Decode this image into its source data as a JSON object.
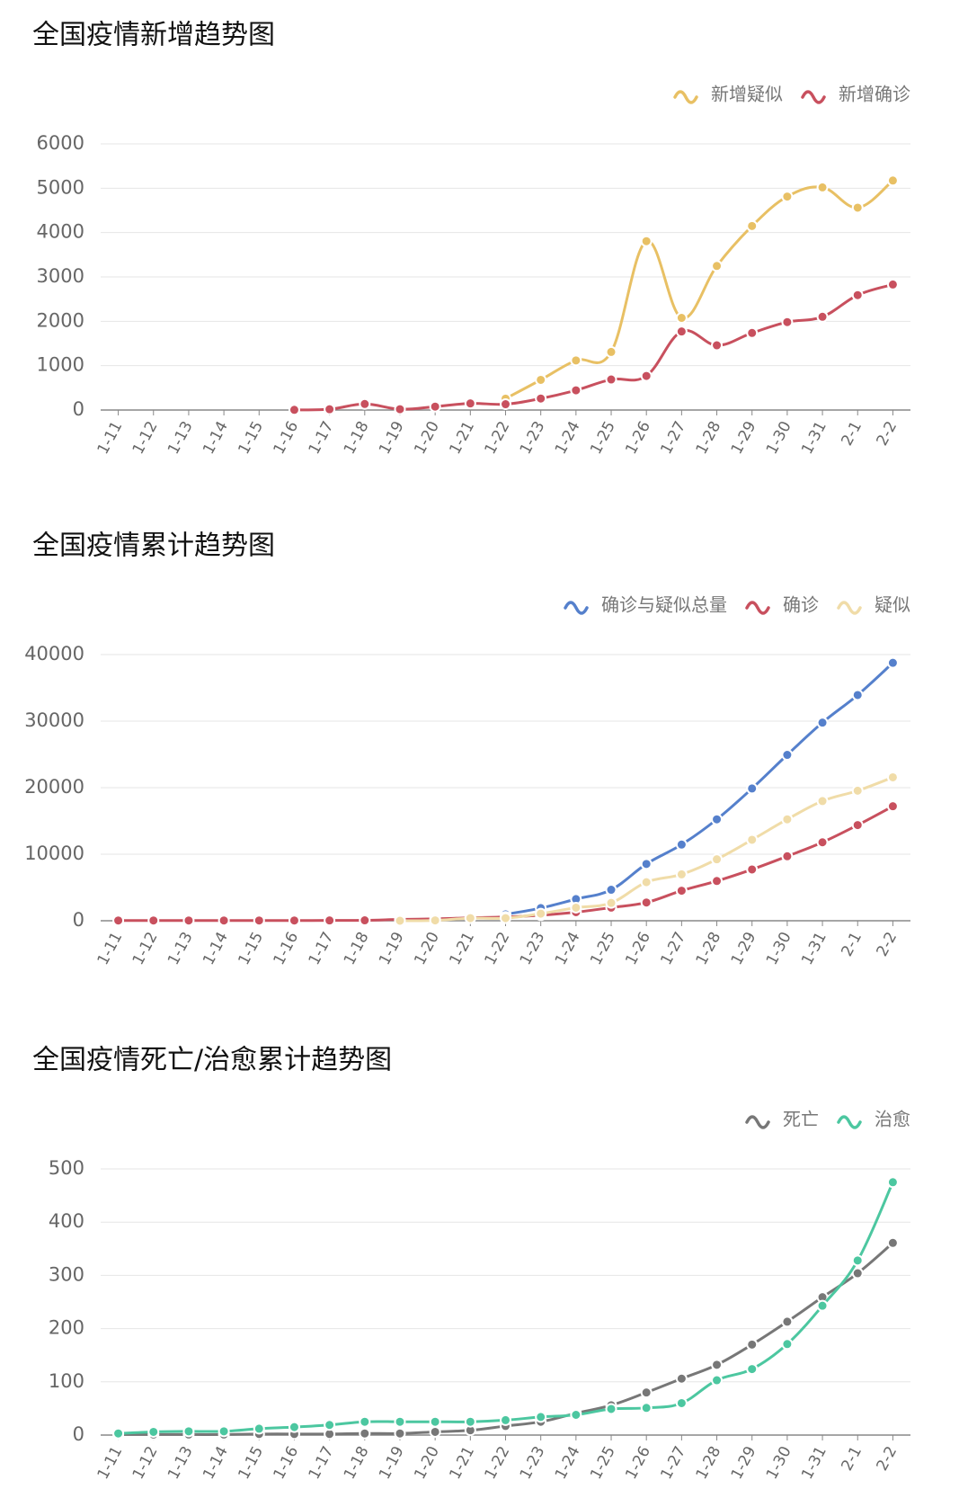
{
  "chart_data": [
    {
      "type": "line",
      "title": "全国疫情新增趋势图",
      "categories": [
        "1-11",
        "1-12",
        "1-13",
        "1-14",
        "1-15",
        "1-16",
        "1-17",
        "1-18",
        "1-19",
        "1-20",
        "1-21",
        "1-22",
        "1-23",
        "1-24",
        "1-25",
        "1-26",
        "1-27",
        "1-28",
        "1-29",
        "1-30",
        "1-31",
        "2-1",
        "2-2"
      ],
      "series": [
        {
          "name": "新增疑似",
          "color": "#e8c064",
          "values": [
            null,
            null,
            null,
            null,
            null,
            null,
            null,
            null,
            null,
            null,
            null,
            257,
            680,
            1118,
            1309,
            3806,
            2077,
            3248,
            4148,
            4812,
            5019,
            4562,
            5173
          ]
        },
        {
          "name": "新增确诊",
          "color": "#c8505e",
          "values": [
            null,
            null,
            null,
            null,
            null,
            4,
            17,
            136,
            19,
            77,
            149,
            131,
            259,
            444,
            688,
            769,
            1771,
            1459,
            1737,
            1982,
            2102,
            2590,
            2829
          ]
        }
      ],
      "ylim": [
        0,
        6000
      ],
      "yticks": [
        0,
        1000,
        2000,
        3000,
        4000,
        5000,
        6000
      ],
      "grid": true,
      "legend": "top-right"
    },
    {
      "type": "line",
      "title": "全国疫情累计趋势图",
      "categories": [
        "1-11",
        "1-12",
        "1-13",
        "1-14",
        "1-15",
        "1-16",
        "1-17",
        "1-18",
        "1-19",
        "1-20",
        "1-21",
        "1-22",
        "1-23",
        "1-24",
        "1-25",
        "1-26",
        "1-27",
        "1-28",
        "1-29",
        "1-30",
        "1-31",
        "2-1",
        "2-2"
      ],
      "series": [
        {
          "name": "确诊与疑似总量",
          "color": "#5580cc",
          "values": [
            null,
            null,
            null,
            null,
            null,
            null,
            null,
            null,
            null,
            null,
            null,
            964,
            1902,
            3252,
            4659,
            8538,
            11447,
            15238,
            19878,
            24930,
            29779,
            33924,
            38763
          ]
        },
        {
          "name": "确诊",
          "color": "#c8505e",
          "values": [
            41,
            41,
            41,
            41,
            41,
            41,
            45,
            62,
            198,
            291,
            440,
            571,
            830,
            1287,
            1975,
            2744,
            4515,
            5974,
            7711,
            9692,
            11791,
            14380,
            17205
          ]
        },
        {
          "name": "疑似",
          "color": "#f0dca8",
          "values": [
            null,
            null,
            null,
            null,
            null,
            null,
            null,
            null,
            0,
            54,
            393,
            393,
            1072,
            1965,
            2684,
            5794,
            6973,
            9239,
            12167,
            15238,
            17988,
            19544,
            21558
          ]
        }
      ],
      "ylim": [
        0,
        40000
      ],
      "yticks": [
        0,
        10000,
        20000,
        30000,
        40000
      ],
      "grid": true,
      "legend": "top-right"
    },
    {
      "type": "line",
      "title": "全国疫情死亡/治愈累计趋势图",
      "categories": [
        "1-11",
        "1-12",
        "1-13",
        "1-14",
        "1-15",
        "1-16",
        "1-17",
        "1-18",
        "1-19",
        "1-20",
        "1-21",
        "1-22",
        "1-23",
        "1-24",
        "1-25",
        "1-26",
        "1-27",
        "1-28",
        "1-29",
        "1-30",
        "1-31",
        "2-1",
        "2-2"
      ],
      "series": [
        {
          "name": "死亡",
          "color": "#777777",
          "values": [
            1,
            1,
            1,
            1,
            2,
            2,
            2,
            3,
            3,
            6,
            9,
            17,
            25,
            41,
            56,
            80,
            106,
            132,
            170,
            213,
            259,
            304,
            361
          ]
        },
        {
          "name": "治愈",
          "color": "#4cc7a0",
          "values": [
            3,
            6,
            7,
            7,
            12,
            15,
            19,
            25,
            25,
            25,
            25,
            28,
            34,
            38,
            49,
            51,
            60,
            103,
            124,
            171,
            243,
            328,
            475
          ]
        }
      ],
      "ylim": [
        0,
        500
      ],
      "yticks": [
        0,
        100,
        200,
        300,
        400,
        500
      ],
      "grid": true,
      "legend": "top-right"
    }
  ]
}
